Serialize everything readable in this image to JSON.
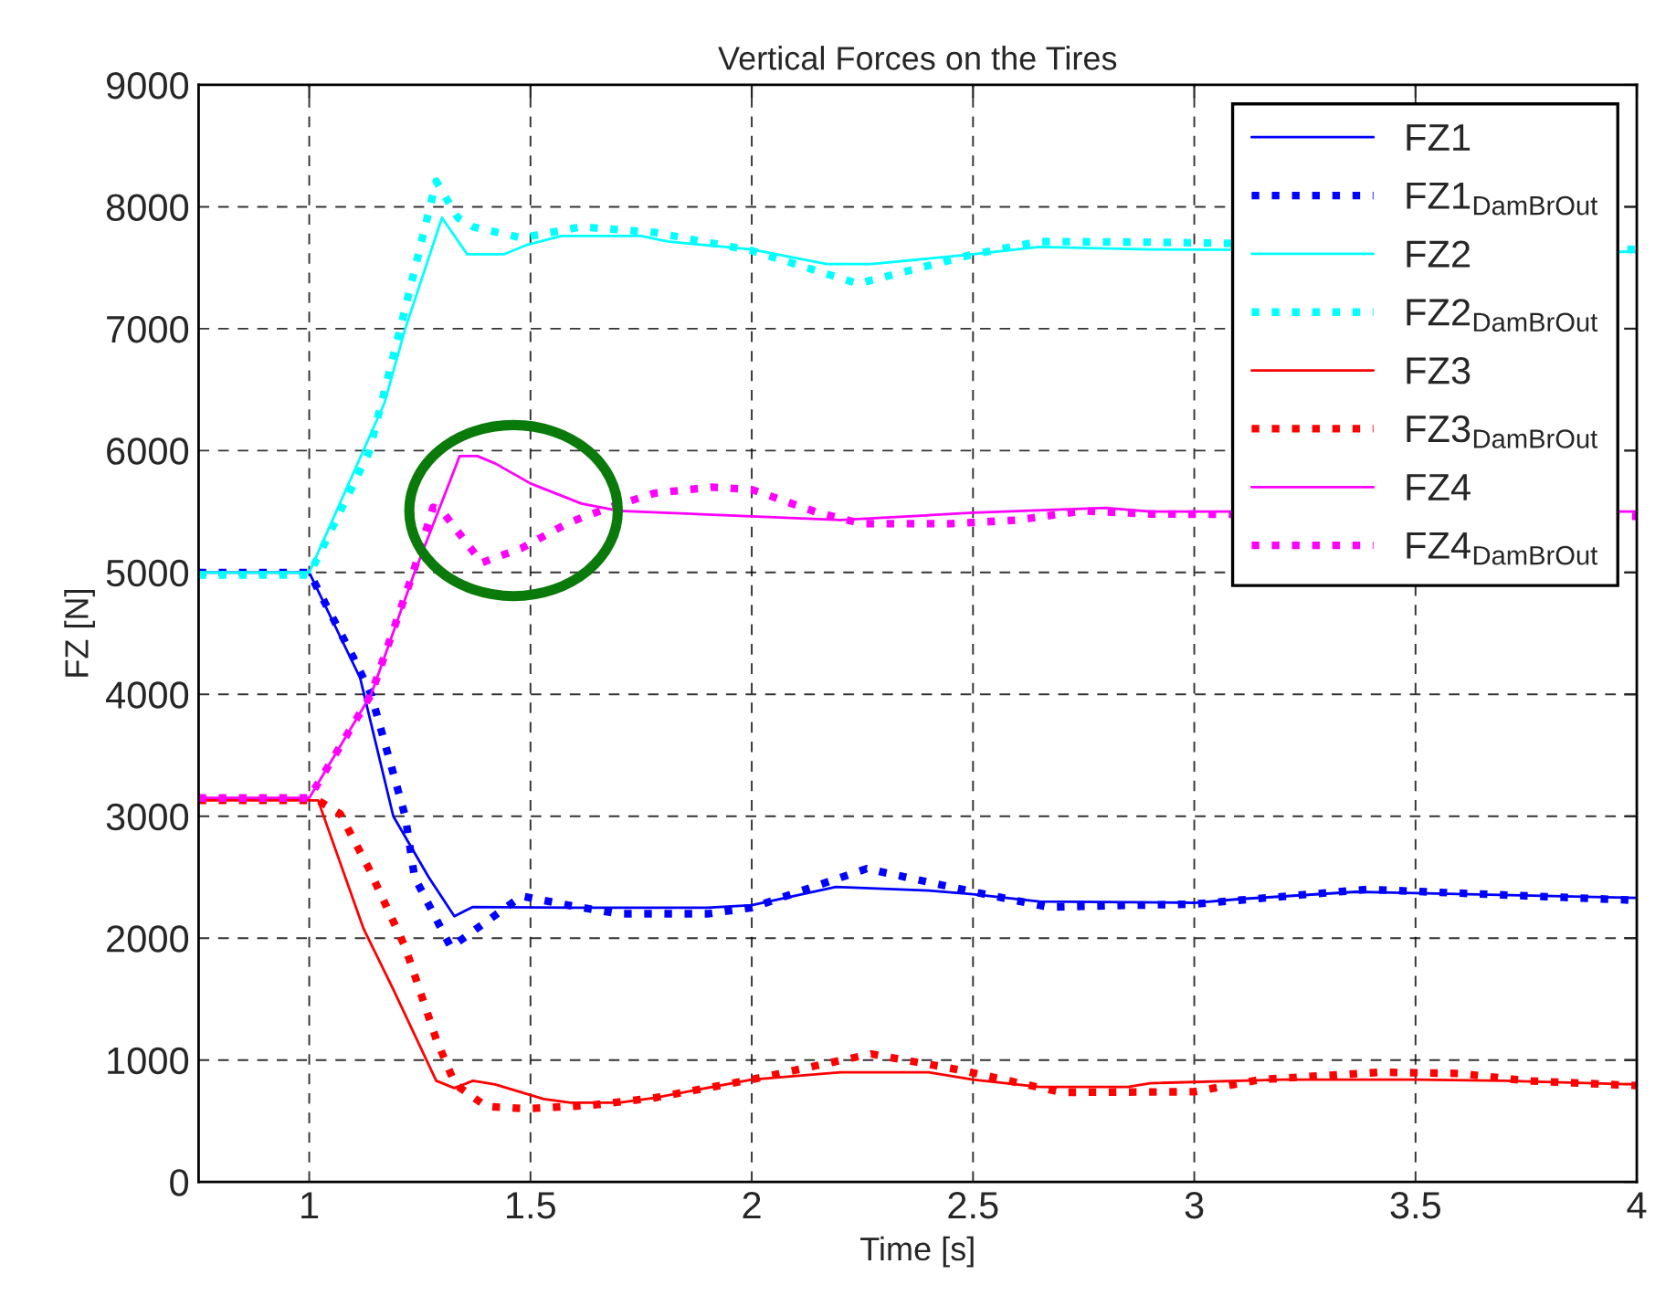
{
  "chart_data": {
    "type": "line",
    "title": "Vertical Forces on the Tires",
    "xlabel": "Time [s]",
    "ylabel": "FZ [N]",
    "xlim": [
      0.75,
      4
    ],
    "ylim": [
      0,
      9000
    ],
    "xticks": [
      1,
      1.5,
      2,
      2.5,
      3,
      3.5,
      4
    ],
    "yticks": [
      0,
      1000,
      2000,
      3000,
      4000,
      5000,
      6000,
      7000,
      8000,
      9000
    ],
    "grid": true,
    "legend": "top right",
    "marker": "none",
    "series": [
      {
        "name": "FZ1",
        "color": "#0000ff",
        "line_style": "solid",
        "x": [
          0.75,
          1.0,
          1.115,
          1.19,
          1.27,
          1.328,
          1.369,
          1.6,
          1.9,
          2.0,
          2.19,
          2.4,
          2.5,
          2.65,
          3.0,
          3.1,
          3.365,
          3.5,
          4.0
        ],
        "values": [
          5000,
          5000,
          4135,
          3000,
          2500,
          2180,
          2255,
          2250,
          2250,
          2270,
          2420,
          2390,
          2360,
          2300,
          2290,
          2320,
          2380,
          2370,
          2330
        ]
      },
      {
        "name": "FZ1$_{DamBrOut}$",
        "color": "#0000ff",
        "line_style": "dotted",
        "x": [
          0.75,
          1.0,
          1.1,
          1.14,
          1.217,
          1.238,
          1.32,
          1.48,
          1.6,
          1.7,
          1.9,
          2.0,
          2.26,
          2.5,
          2.67,
          3.0,
          3.39,
          4.0
        ],
        "values": [
          5000,
          5000,
          4300,
          4000,
          3000,
          2500,
          1925,
          2345,
          2260,
          2200,
          2200,
          2250,
          2570,
          2380,
          2255,
          2280,
          2400,
          2310
        ]
      },
      {
        "name": "FZ2",
        "color": "#00ffff",
        "line_style": "solid",
        "x": [
          0.75,
          1.0,
          1.17,
          1.217,
          1.3,
          1.357,
          1.44,
          1.49,
          1.57,
          1.75,
          1.81,
          2.0,
          2.17,
          2.27,
          2.5,
          2.65,
          2.9,
          4.0
        ],
        "values": [
          5000,
          5000,
          6390,
          7000,
          7910,
          7610,
          7610,
          7685,
          7760,
          7760,
          7715,
          7650,
          7530,
          7530,
          7610,
          7670,
          7650,
          7630
        ]
      },
      {
        "name": "FZ2$_{DamBrOut}$",
        "color": "#00ffff",
        "line_style": "dotted",
        "x": [
          0.75,
          1.0,
          1.135,
          1.205,
          1.287,
          1.336,
          1.37,
          1.48,
          1.615,
          1.78,
          2.0,
          2.24,
          2.5,
          2.65,
          2.9,
          4.0
        ],
        "values": [
          4980,
          4980,
          5985,
          6990,
          8210,
          7910,
          7835,
          7745,
          7835,
          7790,
          7640,
          7370,
          7610,
          7715,
          7710,
          7650
        ]
      },
      {
        "name": "FZ3",
        "color": "#ff0000",
        "line_style": "solid",
        "x": [
          0.75,
          1.02,
          1.123,
          1.19,
          1.287,
          1.328,
          1.37,
          1.42,
          1.53,
          1.59,
          1.7,
          1.78,
          2.0,
          2.2,
          2.4,
          2.5,
          2.65,
          2.85,
          2.9,
          3.2,
          3.5,
          3.7,
          4.0
        ],
        "values": [
          3130,
          3130,
          2075,
          1580,
          830,
          770,
          830,
          800,
          680,
          650,
          650,
          690,
          840,
          900,
          900,
          840,
          780,
          780,
          810,
          840,
          840,
          830,
          800
        ]
      },
      {
        "name": "FZ3$_{DamBrOut}$",
        "color": "#ff0000",
        "line_style": "dotted",
        "x": [
          0.75,
          1.02,
          1.07,
          1.135,
          1.217,
          1.287,
          1.33,
          1.4,
          1.49,
          1.64,
          1.78,
          2.0,
          2.27,
          2.475,
          2.7,
          3.0,
          3.15,
          3.42,
          3.6,
          3.75,
          4.0
        ],
        "values": [
          3130,
          3130,
          3020,
          2570,
          1925,
          1170,
          800,
          620,
          600,
          630,
          690,
          840,
          1050,
          915,
          735,
          740,
          840,
          900,
          890,
          830,
          790
        ]
      },
      {
        "name": "FZ4",
        "color": "#ff00ff",
        "line_style": "solid",
        "x": [
          0.75,
          1.0,
          1.14,
          1.238,
          1.34,
          1.38,
          1.42,
          1.5,
          1.615,
          1.7,
          2.0,
          2.2,
          2.5,
          2.8,
          2.9,
          4.0
        ],
        "values": [
          3150,
          3150,
          4000,
          5000,
          5955,
          5955,
          5895,
          5730,
          5565,
          5505,
          5460,
          5430,
          5490,
          5530,
          5500,
          5500
        ]
      },
      {
        "name": "FZ4$_{DamBrOut}$",
        "color": "#ff00ff",
        "line_style": "dotted",
        "x": [
          0.75,
          1.0,
          1.14,
          1.235,
          1.28,
          1.3,
          1.39,
          1.48,
          1.587,
          1.68,
          1.78,
          1.91,
          2.0,
          2.15,
          2.25,
          2.45,
          2.6,
          2.75,
          2.9,
          4.0
        ],
        "values": [
          3150,
          3150,
          4000,
          5000,
          5535,
          5505,
          5080,
          5200,
          5410,
          5535,
          5650,
          5700,
          5680,
          5490,
          5400,
          5400,
          5430,
          5505,
          5480,
          5460
        ]
      }
    ]
  }
}
